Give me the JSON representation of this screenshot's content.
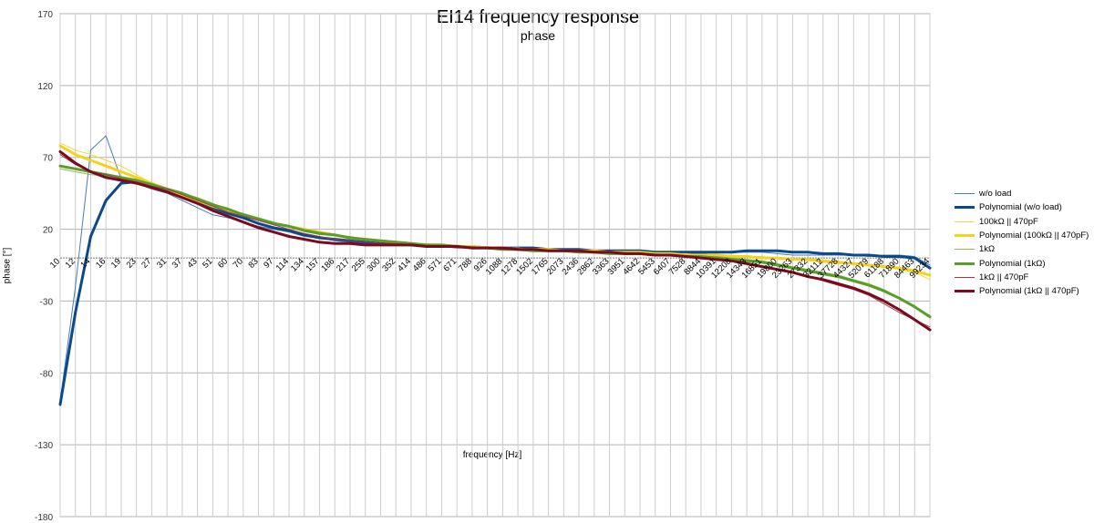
{
  "chart_data": {
    "type": "line",
    "title": "EI14 frequency response",
    "subtitle": "phase",
    "xlabel": "frequency [Hz]",
    "ylabel": "phase [°]",
    "x_scale": "log",
    "ylim": [
      -180,
      170
    ],
    "yticks": [
      170,
      120,
      70,
      20,
      -30,
      -80,
      -130,
      -180
    ],
    "grid": true,
    "legend_position": "right",
    "x_tick_labels": [
      "10",
      "12",
      "14",
      "16",
      "19",
      "23",
      "27",
      "31",
      "37",
      "43",
      "51",
      "60",
      "70",
      "83",
      "97",
      "114",
      "134",
      "157",
      "186",
      "217",
      "255",
      "300",
      "352",
      "414",
      "486",
      "571",
      "671",
      "788",
      "926",
      "1088",
      "1278",
      "1502",
      "1765",
      "2073",
      "2436",
      "2862",
      "3363",
      "3951",
      "4642",
      "5453",
      "6407",
      "7528",
      "8844",
      "10391",
      "12208",
      "14343",
      "16851",
      "19800",
      "23263",
      "27332",
      "32112",
      "37728",
      "44327",
      "52079",
      "61188",
      "71890",
      "84463",
      "99234"
    ],
    "x": [
      10,
      12,
      14,
      16,
      19,
      23,
      27,
      31,
      37,
      43,
      51,
      60,
      70,
      83,
      97,
      114,
      134,
      157,
      186,
      217,
      255,
      300,
      352,
      414,
      486,
      571,
      671,
      788,
      926,
      1088,
      1278,
      1502,
      1765,
      2073,
      2436,
      2862,
      3363,
      3951,
      4642,
      5453,
      6407,
      7528,
      8844,
      10391,
      12208,
      14343,
      16851,
      19800,
      23263,
      27332,
      32112,
      37728,
      44327,
      52079,
      61188,
      71890,
      84463,
      99234
    ],
    "series": [
      {
        "name": "w/o load",
        "color": "#4a7bb7",
        "width": 1,
        "values": [
          -100,
          -20,
          75,
          85,
          55,
          52,
          48,
          45,
          40,
          35,
          30,
          28,
          25,
          22,
          20,
          18,
          15,
          14,
          12,
          11,
          10,
          10,
          9,
          9,
          8,
          8,
          7,
          7,
          7,
          6,
          6,
          6,
          5,
          5,
          5,
          4,
          4,
          4,
          3,
          3,
          3,
          3,
          3,
          4,
          4,
          4,
          4,
          3,
          2,
          2,
          2,
          2,
          2,
          1,
          2,
          2,
          1,
          -5
        ]
      },
      {
        "name": "Polynomial (w/o load)",
        "color": "#0b4a8a",
        "width": 3,
        "values": [
          -102,
          -38,
          15,
          40,
          52,
          53,
          50,
          47,
          43,
          39,
          35,
          31,
          28,
          24,
          21,
          19,
          16,
          14,
          13,
          12,
          11,
          10,
          10,
          9,
          9,
          8,
          8,
          8,
          7,
          7,
          7,
          7,
          6,
          6,
          6,
          5,
          5,
          5,
          5,
          4,
          4,
          4,
          4,
          4,
          4,
          5,
          5,
          5,
          4,
          4,
          3,
          3,
          2,
          2,
          1,
          1,
          0,
          -7
        ]
      },
      {
        "name": "100kΩ || 470pF",
        "color": "#f2d64b",
        "width": 1,
        "values": [
          80,
          75,
          72,
          68,
          64,
          58,
          52,
          48,
          44,
          40,
          36,
          32,
          29,
          27,
          24,
          22,
          20,
          18,
          16,
          15,
          13,
          12,
          11,
          10,
          10,
          9,
          9,
          8,
          8,
          7,
          7,
          6,
          6,
          5,
          5,
          5,
          4,
          4,
          4,
          3,
          3,
          3,
          2,
          2,
          2,
          1,
          1,
          0,
          -1,
          -2,
          -3,
          -4,
          -4,
          -5,
          -6,
          -8,
          -10,
          -15
        ]
      },
      {
        "name": "Polynomial (100kΩ || 470pF)",
        "color": "#f5d21c",
        "width": 3,
        "values": [
          78,
          72,
          68,
          64,
          60,
          56,
          52,
          48,
          44,
          40,
          36,
          33,
          30,
          27,
          24,
          22,
          20,
          18,
          16,
          14,
          13,
          12,
          11,
          10,
          9,
          9,
          8,
          8,
          7,
          7,
          6,
          6,
          6,
          5,
          5,
          5,
          4,
          4,
          4,
          3,
          3,
          2,
          2,
          2,
          1,
          1,
          0,
          0,
          -1,
          -1,
          -2,
          -3,
          -4,
          -5,
          -6,
          -7,
          -9,
          -12
        ]
      },
      {
        "name": "1kΩ",
        "color": "#8fbd4a",
        "width": 1,
        "values": [
          62,
          60,
          58,
          57,
          56,
          54,
          52,
          48,
          45,
          42,
          38,
          34,
          31,
          28,
          25,
          22,
          20,
          18,
          16,
          15,
          13,
          12,
          11,
          10,
          9,
          9,
          8,
          8,
          7,
          7,
          6,
          6,
          5,
          5,
          5,
          4,
          4,
          4,
          3,
          3,
          2,
          2,
          1,
          1,
          0,
          -1,
          -2,
          -4,
          -6,
          -8,
          -10,
          -12,
          -15,
          -18,
          -22,
          -28,
          -34,
          -40
        ]
      },
      {
        "name": "Polynomial (1kΩ)",
        "color": "#5a9e2a",
        "width": 3,
        "values": [
          64,
          62,
          60,
          58,
          56,
          54,
          51,
          48,
          45,
          41,
          37,
          34,
          30,
          27,
          24,
          22,
          19,
          17,
          16,
          14,
          13,
          12,
          11,
          10,
          9,
          9,
          8,
          7,
          7,
          6,
          6,
          5,
          5,
          5,
          4,
          4,
          3,
          3,
          3,
          2,
          2,
          1,
          1,
          0,
          -1,
          -2,
          -3,
          -5,
          -7,
          -9,
          -11,
          -13,
          -16,
          -19,
          -23,
          -28,
          -34,
          -41
        ]
      },
      {
        "name": "1kΩ || 470pF",
        "color": "#a0384a",
        "width": 1,
        "values": [
          72,
          65,
          60,
          58,
          55,
          53,
          50,
          48,
          44,
          40,
          36,
          32,
          29,
          26,
          23,
          20,
          17,
          15,
          13,
          12,
          11,
          10,
          10,
          9,
          8,
          8,
          7,
          7,
          7,
          6,
          6,
          6,
          5,
          5,
          4,
          4,
          4,
          3,
          3,
          2,
          2,
          1,
          0,
          -1,
          -2,
          -4,
          -6,
          -8,
          -10,
          -13,
          -16,
          -19,
          -22,
          -26,
          -32,
          -38,
          -43,
          -48
        ]
      },
      {
        "name": "Polynomial (1kΩ || 470pF)",
        "color": "#7a0a1e",
        "width": 3,
        "values": [
          74,
          66,
          60,
          56,
          54,
          52,
          49,
          46,
          42,
          38,
          33,
          29,
          25,
          21,
          18,
          15,
          13,
          11,
          10,
          10,
          9,
          9,
          9,
          9,
          8,
          8,
          8,
          7,
          7,
          7,
          6,
          6,
          5,
          5,
          5,
          4,
          4,
          3,
          3,
          2,
          2,
          1,
          0,
          -1,
          -2,
          -4,
          -6,
          -8,
          -10,
          -13,
          -15,
          -18,
          -21,
          -25,
          -30,
          -36,
          -43,
          -50
        ]
      }
    ]
  }
}
